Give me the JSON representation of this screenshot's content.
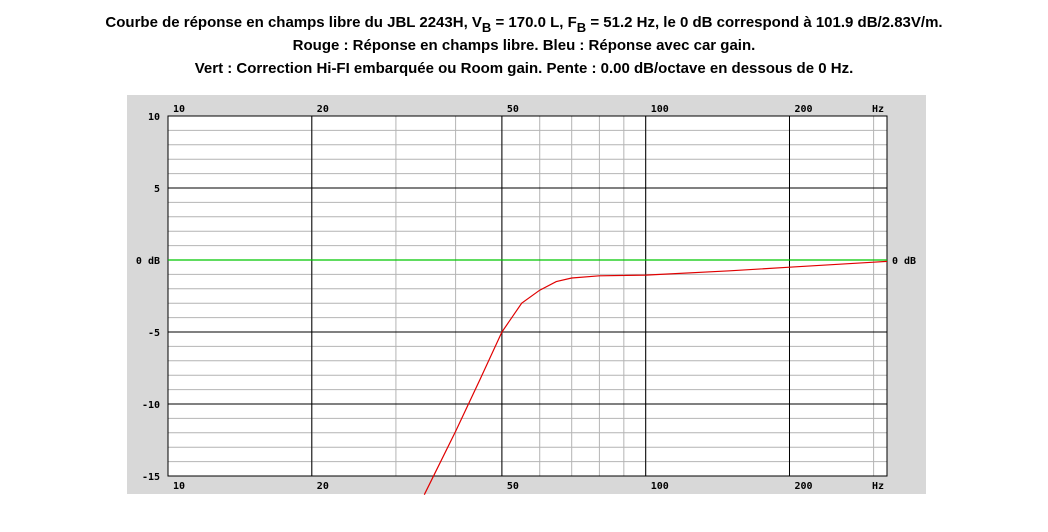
{
  "chart_data": {
    "type": "line",
    "title_lines": [
      [
        "Courbe de réponse en champs libre du JBL 2243H, V",
        "B",
        " = 170.0 L, F",
        "B",
        " = 51.2 Hz, le 0 dB correspond à 101.9 dB/2.83V/m."
      ],
      [
        "Rouge : Réponse en champs libre. Bleu : Réponse avec car gain."
      ],
      [
        "Vert : Correction Hi-FI embarquée ou Room gain. Pente : 0.00 dB/octave en dessous de 0 Hz."
      ]
    ],
    "xlabel": "Hz",
    "xlog": true,
    "xlim": [
      10,
      320
    ],
    "ylim": [
      -15,
      10
    ],
    "xticks": [
      10,
      20,
      50,
      100,
      200
    ],
    "yticks": [
      -15,
      -10,
      -5,
      {
        "value": 0,
        "label": "0 dB"
      },
      5,
      10
    ],
    "xgrid": [
      10,
      20,
      30,
      40,
      50,
      60,
      70,
      80,
      90,
      100,
      200,
      300
    ],
    "ygrid": [
      -15,
      -14,
      -13,
      -12,
      -11,
      -10,
      -9,
      -8,
      -7,
      -6,
      -5,
      -4,
      -3,
      -2,
      -1,
      0,
      1,
      2,
      3,
      4,
      5,
      6,
      7,
      8,
      9,
      10
    ],
    "series": [
      {
        "name": "Vert",
        "color": "#00c800",
        "x": [
          10,
          320
        ],
        "values": [
          0,
          0
        ]
      },
      {
        "name": "Rouge",
        "color": "#e00000",
        "x": [
          34.4,
          40,
          45,
          50,
          55,
          60,
          65,
          70,
          80,
          100,
          150,
          200,
          300,
          320
        ],
        "values": [
          -16.3,
          -11.9,
          -8.3,
          -5,
          -3,
          -2.1,
          -1.5,
          -1.25,
          -1.1,
          -1.05,
          -0.75,
          -0.5,
          -0.15,
          -0.1
        ]
      }
    ]
  }
}
